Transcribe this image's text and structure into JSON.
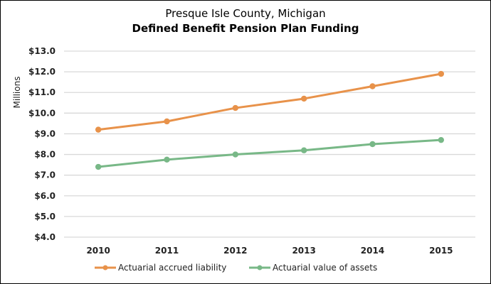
{
  "chart_data": {
    "type": "line",
    "title": "Presque Isle County, Michigan",
    "subtitle": "Defined Benefit Pension Plan Funding",
    "xlabel": "",
    "ylabel": "Millions",
    "categories": [
      "2010",
      "2011",
      "2012",
      "2013",
      "2014",
      "2015"
    ],
    "ylim": [
      4.0,
      13.0
    ],
    "yticks": [
      4.0,
      5.0,
      6.0,
      7.0,
      8.0,
      9.0,
      10.0,
      11.0,
      12.0,
      13.0
    ],
    "ytick_labels": [
      "$4.0",
      "$5.0",
      "$6.0",
      "$7.0",
      "$8.0",
      "$9.0",
      "$10.0",
      "$11.0",
      "$12.0",
      "$13.0"
    ],
    "grid": true,
    "legend_position": "bottom",
    "series": [
      {
        "name": "Actuarial accrued liability",
        "color": "#E8924A",
        "values": [
          9.2,
          9.6,
          10.25,
          10.7,
          11.3,
          11.9
        ]
      },
      {
        "name": "Actuarial value of assets",
        "color": "#78B887",
        "values": [
          7.4,
          7.75,
          8.0,
          8.2,
          8.5,
          8.7
        ]
      }
    ]
  }
}
